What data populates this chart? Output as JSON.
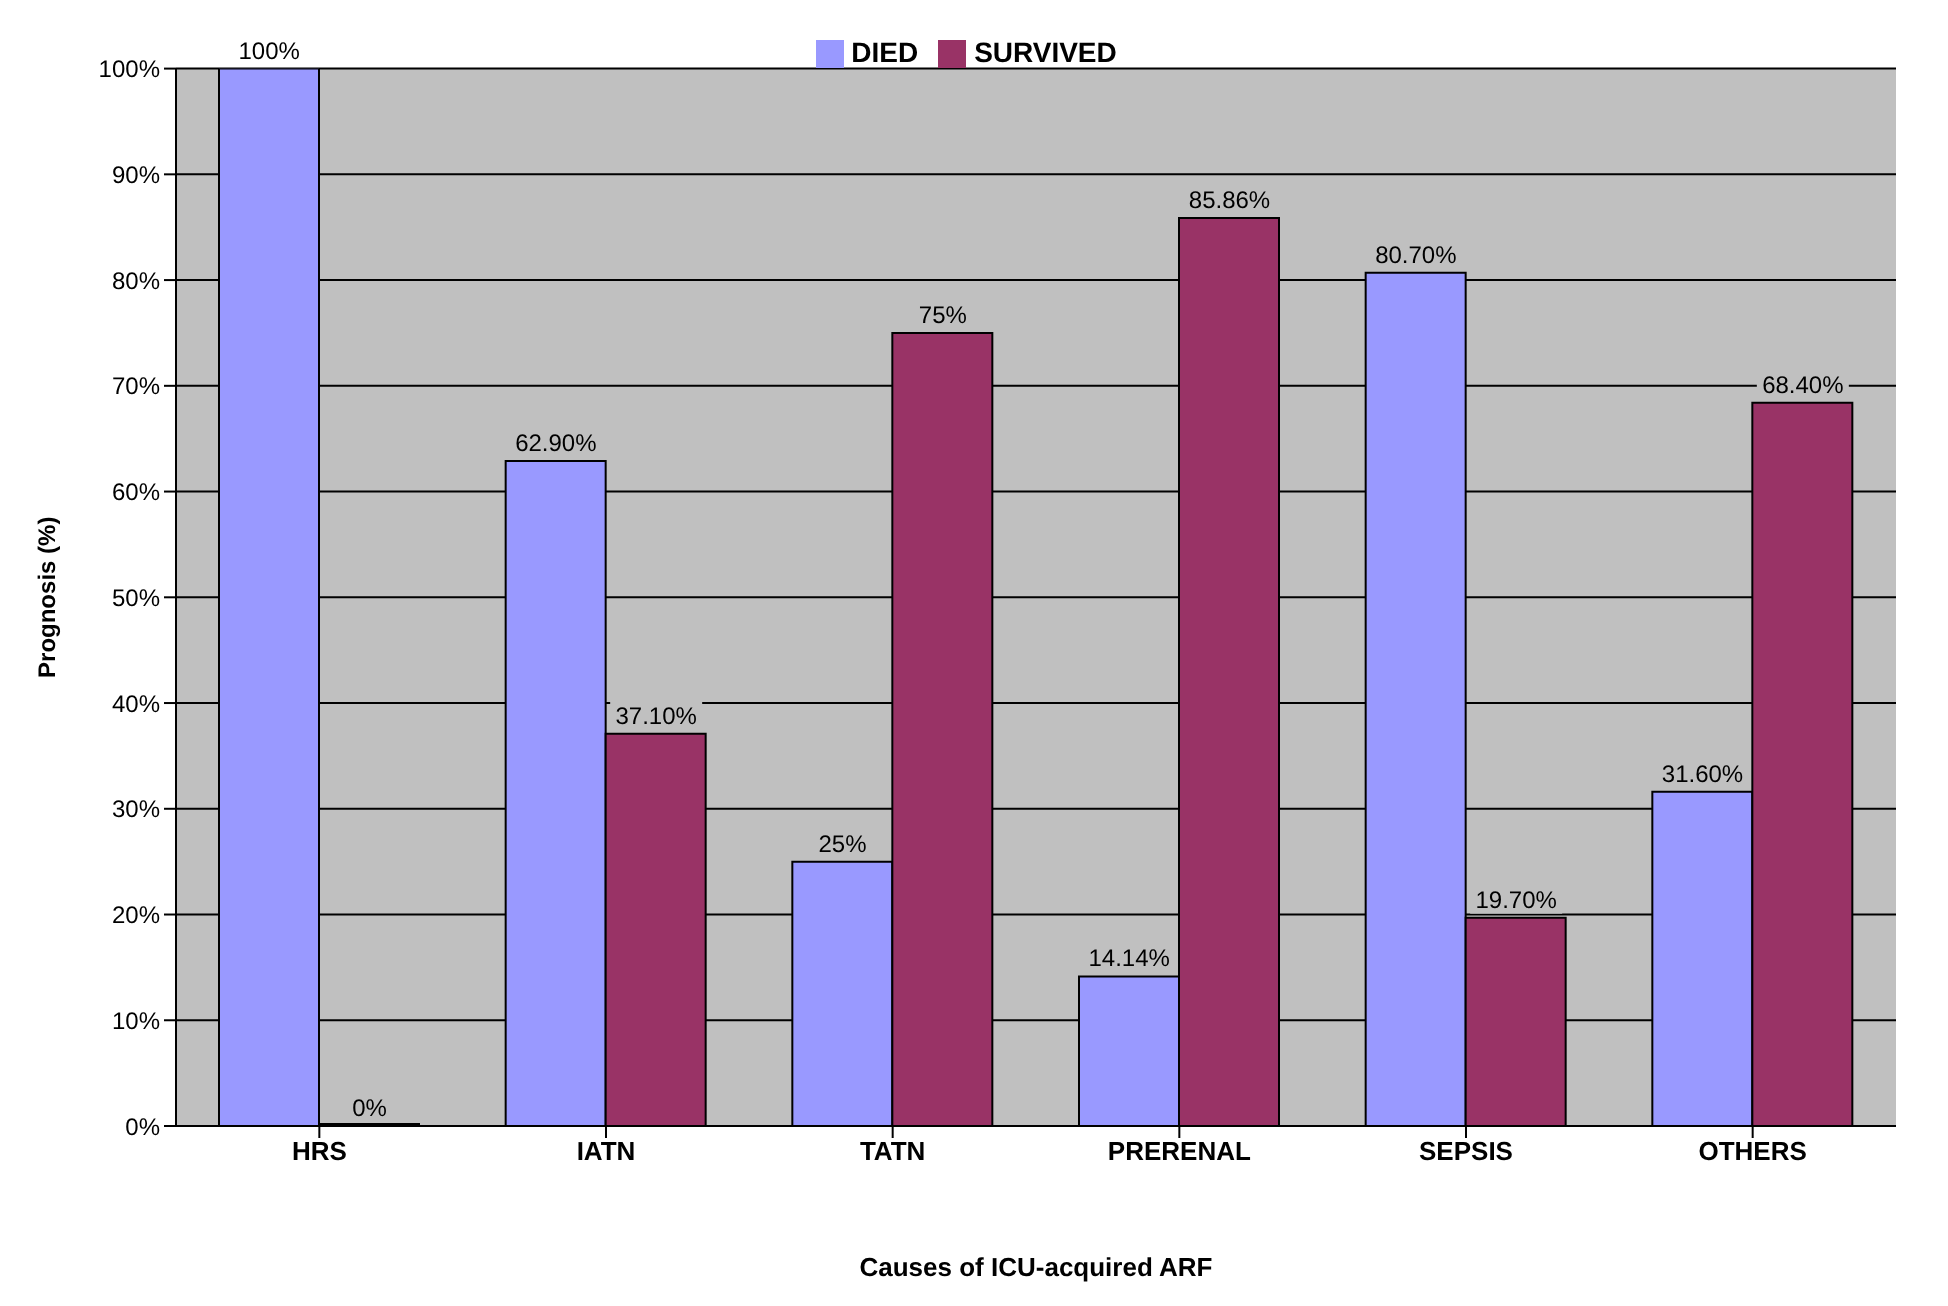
{
  "chart_data": {
    "type": "bar",
    "xlabel": "Causes of ICU-acquired ARF",
    "ylabel": "Prognosis (%)",
    "categories": [
      "HRS",
      "IATN",
      "TATN",
      "PRERENAL",
      "SEPSIS",
      "OTHERS"
    ],
    "series": [
      {
        "name": "DIED",
        "color": "#9999ff",
        "values": [
          100,
          62.9,
          25,
          14.14,
          80.7,
          31.6
        ],
        "value_labels": [
          "100%",
          "62.90%",
          "25%",
          "14.14%",
          "80.70%",
          "31.60%"
        ]
      },
      {
        "name": "SURVIVED",
        "color": "#993366",
        "values": [
          0,
          37.1,
          75,
          85.86,
          19.7,
          68.4
        ],
        "value_labels": [
          "0%",
          "37.10%",
          "75%",
          "85.86%",
          "19.70%",
          "68.40%"
        ]
      }
    ],
    "ylim": [
      0,
      100
    ],
    "yticks": [
      {
        "value": 0,
        "label": "0%"
      },
      {
        "value": 10,
        "label": "10%"
      },
      {
        "value": 20,
        "label": "20%"
      },
      {
        "value": 30,
        "label": "30%"
      },
      {
        "value": 40,
        "label": "40%"
      },
      {
        "value": 50,
        "label": "50%"
      },
      {
        "value": 60,
        "label": "60%"
      },
      {
        "value": 70,
        "label": "70%"
      },
      {
        "value": 80,
        "label": "80%"
      },
      {
        "value": 90,
        "label": "90%"
      },
      {
        "value": 100,
        "label": "100%"
      }
    ],
    "grid": "y",
    "legend": "top"
  }
}
